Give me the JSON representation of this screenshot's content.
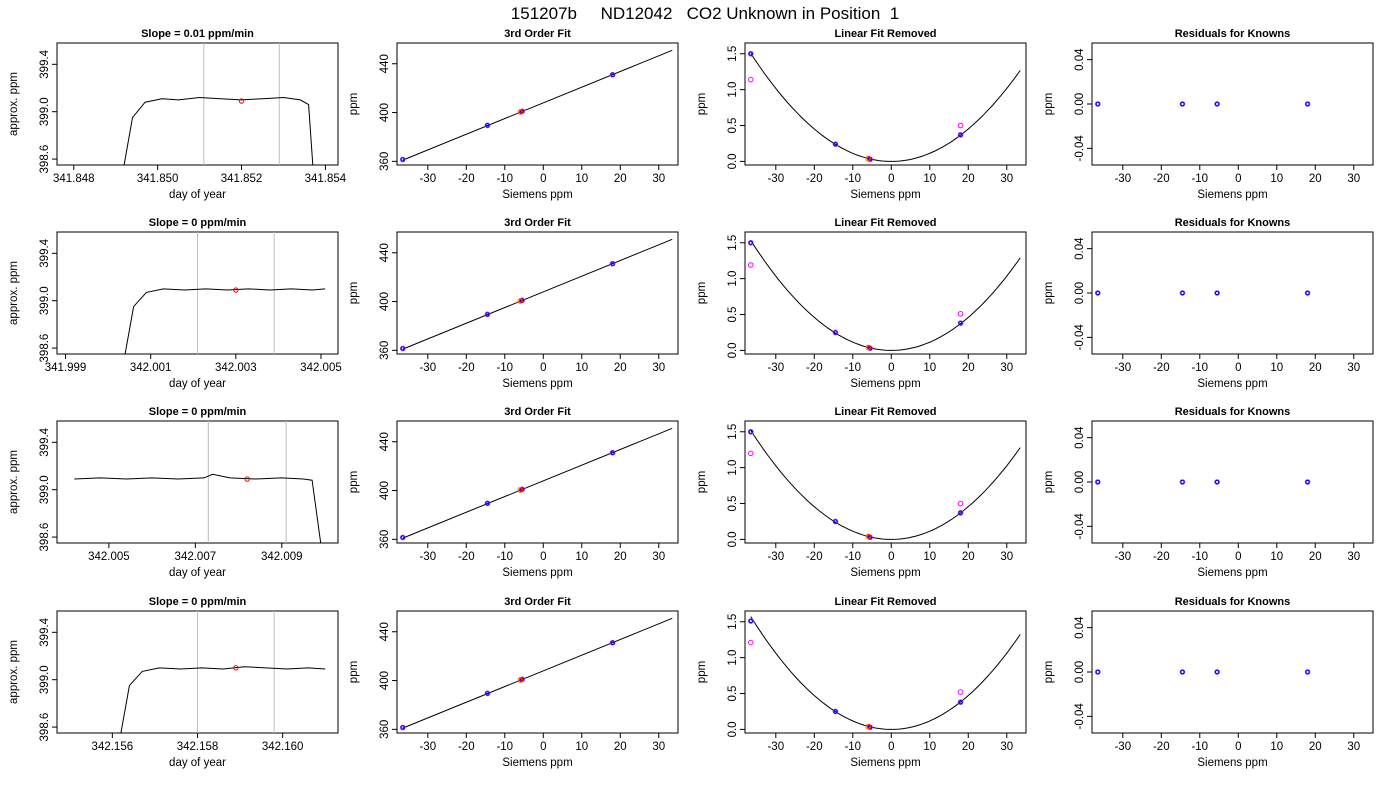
{
  "page_title": "151207b     ND12042   CO2 Unknown in Position  1",
  "colors": {
    "line": "#000000",
    "vline": "#bebebe",
    "known_blue": "#0000ff",
    "known_purple": "#9b30ff",
    "magenta": "#ff00ff",
    "unknown_red": "#ff0000",
    "unknown_orange": "#ff7f00"
  },
  "chart_data": [
    {
      "type": "line",
      "title": "Slope =  0.01  ppm/min",
      "xlabel": "day of year",
      "ylabel": "approx. ppm",
      "xlim": [
        341.8476,
        341.8543
      ],
      "ylim": [
        398.55,
        399.58
      ],
      "xticks": [
        "341.848",
        "341.850",
        "341.852",
        "341.854"
      ],
      "yticks": [
        "398.6",
        "399.0",
        "399.4"
      ],
      "grid": false,
      "vlines": [
        341.8511,
        341.8529
      ],
      "trace": [
        [
          341.8492,
          398.55
        ],
        [
          341.8494,
          398.95
        ],
        [
          341.8497,
          399.08
        ],
        [
          341.8501,
          399.11
        ],
        [
          341.8505,
          399.1
        ],
        [
          341.851,
          399.12
        ],
        [
          341.8515,
          399.11
        ],
        [
          341.852,
          399.1
        ],
        [
          341.8525,
          399.11
        ],
        [
          341.853,
          399.12
        ],
        [
          341.8534,
          399.1
        ],
        [
          341.8536,
          399.06
        ],
        [
          341.8537,
          398.55
        ]
      ],
      "marker": [
        341.852,
        399.09
      ]
    },
    {
      "type": "scatter",
      "title": "3rd Order Fit",
      "xlabel": "Siemens ppm",
      "ylabel": "ppm",
      "xlim": [
        -38,
        35
      ],
      "ylim": [
        357,
        457
      ],
      "xticks": [
        "-30",
        "-20",
        "-10",
        "0",
        "10",
        "20",
        "30"
      ],
      "yticks": [
        "360",
        "400",
        "440"
      ],
      "fit_line": [
        [
          -36.5,
          361
        ],
        [
          33.5,
          451
        ]
      ],
      "knowns": [
        [
          -36.5,
          361.5
        ],
        [
          -14.5,
          389.5
        ],
        [
          -5.5,
          401
        ],
        [
          18,
          431
        ]
      ],
      "unknowns": [
        [
          -6,
          400.5
        ]
      ]
    },
    {
      "type": "scatter",
      "title": "Linear Fit Removed",
      "xlabel": "Siemens ppm",
      "ylabel": "ppm",
      "xlim": [
        -38,
        35
      ],
      "ylim": [
        -0.05,
        1.65
      ],
      "xticks": [
        "-30",
        "-20",
        "-10",
        "0",
        "10",
        "20",
        "30"
      ],
      "yticks": [
        "0.0",
        "0.5",
        "1.0",
        "1.5"
      ],
      "curve_coeff": 0.00113,
      "knowns": [
        [
          -36.5,
          1.5
        ],
        [
          -14.5,
          0.24
        ],
        [
          -5.5,
          0.03
        ],
        [
          18,
          0.37
        ]
      ],
      "magenta_points": [
        [
          -36.5,
          1.14
        ],
        [
          18,
          0.5
        ]
      ],
      "unknowns": [
        [
          -6,
          0.04
        ]
      ]
    },
    {
      "type": "scatter",
      "title": "Residuals for Knowns",
      "xlabel": "Siemens ppm",
      "ylabel": "ppm",
      "xlim": [
        -38,
        35
      ],
      "ylim": [
        -0.055,
        0.055
      ],
      "xticks": [
        "-30",
        "-20",
        "-10",
        "0",
        "10",
        "20",
        "30"
      ],
      "yticks": [
        "-0.04",
        "0.00",
        "0.04"
      ],
      "knowns": [
        [
          -36.5,
          0
        ],
        [
          -14.5,
          0
        ],
        [
          -5.5,
          0
        ],
        [
          18,
          0
        ]
      ]
    },
    {
      "type": "line",
      "title": "Slope =  0  ppm/min",
      "xlabel": "day of year",
      "ylabel": "approx. ppm",
      "xlim": [
        341.9988,
        342.0054
      ],
      "ylim": [
        398.55,
        399.58
      ],
      "xticks": [
        "341.999",
        "342.001",
        "342.003",
        "342.005"
      ],
      "yticks": [
        "398.6",
        "399.0",
        "399.4"
      ],
      "grid": false,
      "vlines": [
        342.0021,
        342.0039
      ],
      "trace": [
        [
          342.0004,
          398.55
        ],
        [
          342.0006,
          398.95
        ],
        [
          342.0009,
          399.07
        ],
        [
          342.0013,
          399.1
        ],
        [
          342.0018,
          399.09
        ],
        [
          342.0023,
          399.1
        ],
        [
          342.0028,
          399.09
        ],
        [
          342.0033,
          399.1
        ],
        [
          342.0038,
          399.09
        ],
        [
          342.0043,
          399.1
        ],
        [
          342.0048,
          399.09
        ],
        [
          342.0051,
          399.1
        ]
      ],
      "marker": [
        342.003,
        399.09
      ]
    },
    {
      "type": "scatter",
      "title": "3rd Order Fit",
      "xlabel": "Siemens ppm",
      "ylabel": "ppm",
      "xlim": [
        -38,
        35
      ],
      "ylim": [
        357,
        457
      ],
      "xticks": [
        "-30",
        "-20",
        "-10",
        "0",
        "10",
        "20",
        "30"
      ],
      "yticks": [
        "360",
        "400",
        "440"
      ],
      "fit_line": [
        [
          -36.5,
          361
        ],
        [
          33.5,
          451
        ]
      ],
      "knowns": [
        [
          -36.5,
          361.5
        ],
        [
          -14.5,
          389.5
        ],
        [
          -5.5,
          401
        ],
        [
          18,
          431
        ]
      ],
      "unknowns": [
        [
          -6,
          400.5
        ]
      ]
    },
    {
      "type": "scatter",
      "title": "Linear Fit Removed",
      "xlabel": "Siemens ppm",
      "ylabel": "ppm",
      "xlim": [
        -38,
        35
      ],
      "ylim": [
        -0.05,
        1.65
      ],
      "xticks": [
        "-30",
        "-20",
        "-10",
        "0",
        "10",
        "20",
        "30"
      ],
      "yticks": [
        "0.0",
        "0.5",
        "1.0",
        "1.5"
      ],
      "curve_coeff": 0.00115,
      "knowns": [
        [
          -36.5,
          1.5
        ],
        [
          -14.5,
          0.25
        ],
        [
          -5.5,
          0.03
        ],
        [
          18,
          0.38
        ]
      ],
      "magenta_points": [
        [
          -36.5,
          1.19
        ],
        [
          18,
          0.51
        ]
      ],
      "unknowns": [
        [
          -6,
          0.04
        ]
      ]
    },
    {
      "type": "scatter",
      "title": "Residuals for Knowns",
      "xlabel": "Siemens ppm",
      "ylabel": "ppm",
      "xlim": [
        -38,
        35
      ],
      "ylim": [
        -0.055,
        0.055
      ],
      "xticks": [
        "-30",
        "-20",
        "-10",
        "0",
        "10",
        "20",
        "30"
      ],
      "yticks": [
        "-0.04",
        "0.00",
        "0.04"
      ],
      "knowns": [
        [
          -36.5,
          0
        ],
        [
          -14.5,
          0
        ],
        [
          -5.5,
          0
        ],
        [
          18,
          0
        ]
      ]
    },
    {
      "type": "line",
      "title": "Slope =  0  ppm/min",
      "xlabel": "day of year",
      "ylabel": "approx. ppm",
      "xlim": [
        342.0038,
        342.0103
      ],
      "ylim": [
        398.55,
        399.58
      ],
      "xticks": [
        "342.005",
        "342.007",
        "342.009"
      ],
      "yticks": [
        "398.6",
        "399.0",
        "399.4"
      ],
      "grid": false,
      "vlines": [
        342.0073,
        342.0091
      ],
      "trace": [
        [
          342.0042,
          399.09
        ],
        [
          342.0048,
          399.1
        ],
        [
          342.0054,
          399.09
        ],
        [
          342.006,
          399.1
        ],
        [
          342.0066,
          399.09
        ],
        [
          342.0072,
          399.1
        ],
        [
          342.0074,
          399.13
        ],
        [
          342.0078,
          399.1
        ],
        [
          342.0084,
          399.09
        ],
        [
          342.009,
          399.1
        ],
        [
          342.0095,
          399.09
        ],
        [
          342.0097,
          399.08
        ],
        [
          342.0099,
          398.55
        ]
      ],
      "marker": [
        342.0082,
        399.09
      ]
    },
    {
      "type": "scatter",
      "title": "3rd Order Fit",
      "xlabel": "Siemens ppm",
      "ylabel": "ppm",
      "xlim": [
        -38,
        35
      ],
      "ylim": [
        357,
        457
      ],
      "xticks": [
        "-30",
        "-20",
        "-10",
        "0",
        "10",
        "20",
        "30"
      ],
      "yticks": [
        "360",
        "400",
        "440"
      ],
      "fit_line": [
        [
          -36.5,
          361
        ],
        [
          33.5,
          451
        ]
      ],
      "knowns": [
        [
          -36.5,
          361.5
        ],
        [
          -14.5,
          389.5
        ],
        [
          -5.5,
          401
        ],
        [
          18,
          431
        ]
      ],
      "unknowns": [
        [
          -6,
          400.5
        ]
      ]
    },
    {
      "type": "scatter",
      "title": "Linear Fit Removed",
      "xlabel": "Siemens ppm",
      "ylabel": "ppm",
      "xlim": [
        -38,
        35
      ],
      "ylim": [
        -0.05,
        1.65
      ],
      "xticks": [
        "-30",
        "-20",
        "-10",
        "0",
        "10",
        "20",
        "30"
      ],
      "yticks": [
        "0.0",
        "0.5",
        "1.0",
        "1.5"
      ],
      "curve_coeff": 0.00114,
      "knowns": [
        [
          -36.5,
          1.5
        ],
        [
          -14.5,
          0.25
        ],
        [
          -5.5,
          0.03
        ],
        [
          18,
          0.37
        ]
      ],
      "magenta_points": [
        [
          -36.5,
          1.2
        ],
        [
          18,
          0.5
        ]
      ],
      "unknowns": [
        [
          -6,
          0.04
        ]
      ]
    },
    {
      "type": "scatter",
      "title": "Residuals for Knowns",
      "xlabel": "Siemens ppm",
      "ylabel": "ppm",
      "xlim": [
        -38,
        35
      ],
      "ylim": [
        -0.055,
        0.055
      ],
      "xticks": [
        "-30",
        "-20",
        "-10",
        "0",
        "10",
        "20",
        "30"
      ],
      "yticks": [
        "-0.04",
        "0.00",
        "0.04"
      ],
      "knowns": [
        [
          -36.5,
          0
        ],
        [
          -14.5,
          0
        ],
        [
          -5.5,
          0
        ],
        [
          18,
          0
        ]
      ]
    },
    {
      "type": "line",
      "title": "Slope =  0  ppm/min",
      "xlabel": "day of year",
      "ylabel": "approx. ppm",
      "xlim": [
        342.1547,
        342.1613
      ],
      "ylim": [
        398.55,
        399.58
      ],
      "xticks": [
        "342.156",
        "342.158",
        "342.160"
      ],
      "yticks": [
        "398.6",
        "399.0",
        "399.4"
      ],
      "grid": false,
      "vlines": [
        342.158,
        342.1598
      ],
      "trace": [
        [
          342.1562,
          398.55
        ],
        [
          342.1564,
          398.95
        ],
        [
          342.1567,
          399.07
        ],
        [
          342.1571,
          399.1
        ],
        [
          342.1576,
          399.09
        ],
        [
          342.1581,
          399.1
        ],
        [
          342.1586,
          399.09
        ],
        [
          342.1591,
          399.11
        ],
        [
          342.1596,
          399.1
        ],
        [
          342.1601,
          399.09
        ],
        [
          342.1606,
          399.1
        ],
        [
          342.161,
          399.09
        ]
      ],
      "marker": [
        342.1589,
        399.1
      ]
    },
    {
      "type": "scatter",
      "title": "3rd Order Fit",
      "xlabel": "Siemens ppm",
      "ylabel": "ppm",
      "xlim": [
        -38,
        35
      ],
      "ylim": [
        357,
        457
      ],
      "xticks": [
        "-30",
        "-20",
        "-10",
        "0",
        "10",
        "20",
        "30"
      ],
      "yticks": [
        "360",
        "400",
        "440"
      ],
      "fit_line": [
        [
          -36.5,
          361
        ],
        [
          33.5,
          451
        ]
      ],
      "knowns": [
        [
          -36.5,
          361.5
        ],
        [
          -14.5,
          389.5
        ],
        [
          -5.5,
          401
        ],
        [
          18,
          431
        ]
      ],
      "unknowns": [
        [
          -6,
          400.5
        ]
      ]
    },
    {
      "type": "scatter",
      "title": "Linear Fit Removed",
      "xlabel": "Siemens ppm",
      "ylabel": "ppm",
      "xlim": [
        -38,
        35
      ],
      "ylim": [
        -0.05,
        1.65
      ],
      "xticks": [
        "-30",
        "-20",
        "-10",
        "0",
        "10",
        "20",
        "30"
      ],
      "yticks": [
        "0.0",
        "0.5",
        "1.0",
        "1.5"
      ],
      "curve_coeff": 0.00118,
      "knowns": [
        [
          -36.5,
          1.51
        ],
        [
          -14.5,
          0.25
        ],
        [
          -5.5,
          0.03
        ],
        [
          18,
          0.38
        ]
      ],
      "magenta_points": [
        [
          -36.5,
          1.21
        ],
        [
          18,
          0.52
        ]
      ],
      "unknowns": [
        [
          -6,
          0.04
        ]
      ]
    },
    {
      "type": "scatter",
      "title": "Residuals for Knowns",
      "xlabel": "Siemens ppm",
      "ylabel": "ppm",
      "xlim": [
        -38,
        35
      ],
      "ylim": [
        -0.055,
        0.055
      ],
      "xticks": [
        "-30",
        "-20",
        "-10",
        "0",
        "10",
        "20",
        "30"
      ],
      "yticks": [
        "-0.04",
        "0.00",
        "0.04"
      ],
      "knowns": [
        [
          -36.5,
          0
        ],
        [
          -14.5,
          0
        ],
        [
          -5.5,
          0
        ],
        [
          18,
          0
        ]
      ]
    }
  ]
}
